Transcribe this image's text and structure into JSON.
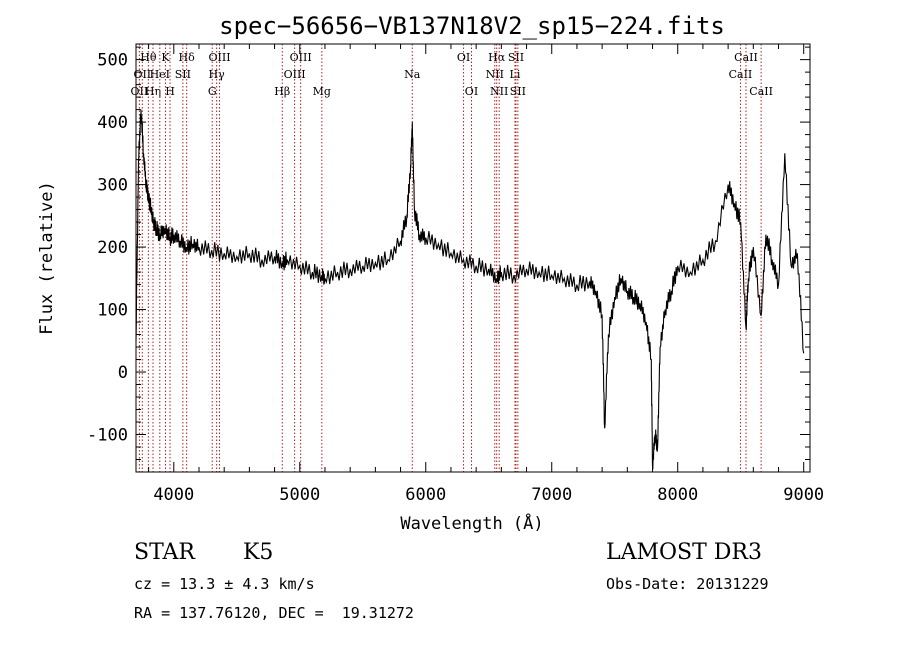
{
  "chart_data": {
    "type": "line",
    "title": "spec−56656−VB137N18V2_sp15−224.fits",
    "xlabel": "Wavelength (Å)",
    "ylabel": "Flux (relative)",
    "xlim": [
      3700,
      9050
    ],
    "ylim": [
      -160,
      525
    ],
    "xticks": [
      4000,
      5000,
      6000,
      7000,
      8000,
      9000
    ],
    "yticks": [
      -100,
      0,
      100,
      200,
      300,
      400,
      500
    ],
    "grid": false,
    "legend": "none",
    "series": [
      {
        "line_color": "#000000",
        "x": [
          3700,
          3720,
          3740,
          3760,
          3780,
          3800,
          3820,
          3840,
          3860,
          3890,
          3930,
          3970,
          4000,
          4050,
          4100,
          4150,
          4200,
          4300,
          4400,
          4500,
          4600,
          4700,
          4800,
          4861,
          4900,
          5000,
          5100,
          5175,
          5200,
          5300,
          5400,
          5500,
          5600,
          5700,
          5800,
          5850,
          5880,
          5893,
          5910,
          5950,
          6000,
          6100,
          6200,
          6300,
          6400,
          6500,
          6563,
          6600,
          6700,
          6800,
          6900,
          7000,
          7100,
          7200,
          7300,
          7350,
          7400,
          7420,
          7450,
          7500,
          7550,
          7600,
          7650,
          7700,
          7750,
          7790,
          7800,
          7820,
          7840,
          7860,
          7900,
          7950,
          8000,
          8100,
          8200,
          8300,
          8400,
          8450,
          8500,
          8542,
          8560,
          8600,
          8662,
          8700,
          8750,
          8800,
          8850,
          8900,
          8950,
          9000
        ],
        "values": [
          50,
          340,
          420,
          350,
          300,
          280,
          260,
          240,
          230,
          220,
          230,
          215,
          220,
          210,
          200,
          205,
          200,
          195,
          190,
          185,
          190,
          180,
          185,
          175,
          180,
          170,
          160,
          155,
          150,
          160,
          165,
          170,
          175,
          180,
          210,
          250,
          330,
          400,
          260,
          220,
          215,
          205,
          190,
          180,
          170,
          165,
          150,
          160,
          155,
          165,
          160,
          155,
          150,
          140,
          145,
          130,
          90,
          -90,
          60,
          120,
          150,
          130,
          120,
          110,
          80,
          20,
          -150,
          -100,
          -120,
          40,
          100,
          130,
          170,
          160,
          180,
          210,
          300,
          270,
          240,
          70,
          150,
          200,
          90,
          220,
          180,
          140,
          350,
          170,
          190,
          30
        ]
      }
    ],
    "spectral_lines": [
      {
        "x": 3727,
        "label": "OII",
        "row": 2
      },
      {
        "x": 3750,
        "label": "OII",
        "row": 1
      },
      {
        "x": 3798,
        "label": "Hθ",
        "row": 0
      },
      {
        "x": 3835,
        "label": "Hη",
        "row": 2
      },
      {
        "x": 3889,
        "label": "HeI",
        "row": 1
      },
      {
        "x": 3934,
        "label": "K",
        "row": 0
      },
      {
        "x": 3970,
        "label": "H",
        "row": 2
      },
      {
        "x": 4072,
        "label": "SII",
        "row": 1
      },
      {
        "x": 4102,
        "label": "Hδ",
        "row": 0
      },
      {
        "x": 4305,
        "label": "G",
        "row": 2
      },
      {
        "x": 4340,
        "label": "Hγ",
        "row": 1
      },
      {
        "x": 4363,
        "label": "OIII",
        "row": 0
      },
      {
        "x": 4861,
        "label": "Hβ",
        "row": 2
      },
      {
        "x": 4959,
        "label": "OIII",
        "row": 1
      },
      {
        "x": 5007,
        "label": "OIII",
        "row": 0
      },
      {
        "x": 5175,
        "label": "Mg",
        "row": 2
      },
      {
        "x": 5893,
        "label": "Na",
        "row": 1
      },
      {
        "x": 6300,
        "label": "OI",
        "row": 0
      },
      {
        "x": 6363,
        "label": "OI",
        "row": 2
      },
      {
        "x": 6548,
        "label": "NII",
        "row": 1
      },
      {
        "x": 6563,
        "label": "Hα",
        "row": 0
      },
      {
        "x": 6583,
        "label": "NII",
        "row": 2
      },
      {
        "x": 6708,
        "label": "Li",
        "row": 1
      },
      {
        "x": 6716,
        "label": "SII",
        "row": 0
      },
      {
        "x": 6731,
        "label": "SII",
        "row": 2
      },
      {
        "x": 8498,
        "label": "CaII",
        "row": 1
      },
      {
        "x": 8542,
        "label": "CaII",
        "row": 0
      },
      {
        "x": 8662,
        "label": "CaII",
        "row": 2
      }
    ]
  },
  "info": {
    "object_class": "STAR",
    "subclass": "K5",
    "survey": "LAMOST DR3",
    "redshift": "cz = 13.3 ± 4.3 km/s",
    "obs_date": "Obs-Date: 20131229",
    "coords": "RA = 137.76120, DEC =  19.31272"
  },
  "colors": {
    "spectral_line": "#b22222",
    "spectrum": "#000000"
  }
}
